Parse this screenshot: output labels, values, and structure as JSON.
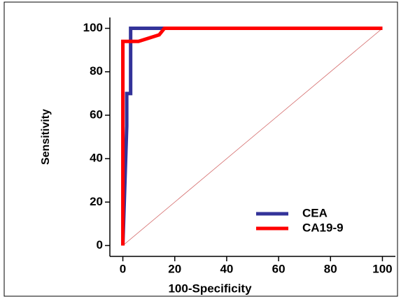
{
  "chart_data": {
    "type": "line",
    "x_label": "100-Specificity",
    "y_label": "Sensitivity",
    "xlim": [
      -5,
      105
    ],
    "ylim": [
      -5,
      105
    ],
    "xticks": [
      0,
      20,
      40,
      60,
      80,
      100
    ],
    "yticks": [
      0,
      20,
      40,
      60,
      80,
      100
    ],
    "series": [
      {
        "name": "CEA",
        "color": "#333399",
        "x": [
          0,
          1.5,
          1.5,
          3,
          3,
          100
        ],
        "values": [
          0,
          55,
          70,
          70,
          100,
          100
        ]
      },
      {
        "name": "CA19-9",
        "color": "#ff0000",
        "x": [
          0,
          0,
          6,
          14,
          16,
          100
        ],
        "values": [
          0,
          94,
          94,
          97,
          100,
          100
        ]
      }
    ],
    "reference_line": {
      "color": "#d46a6a",
      "x": [
        0,
        100
      ],
      "values": [
        0,
        100
      ]
    },
    "legend": "lower right"
  }
}
